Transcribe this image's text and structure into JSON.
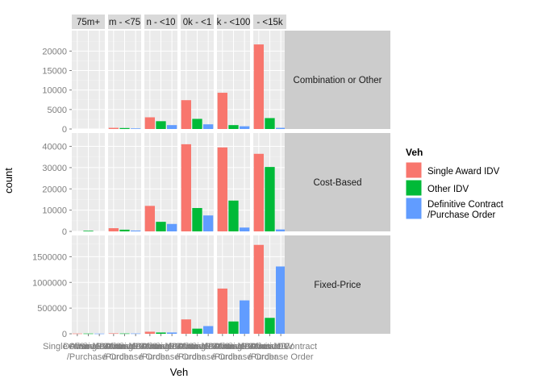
{
  "chart_data": {
    "type": "bar",
    "xlabel": "Veh",
    "ylabel": "count",
    "legend": {
      "title": "Veh",
      "placement": "right",
      "items": [
        {
          "label": "Single Award IDV",
          "color": "#F8766D"
        },
        {
          "label": "Other IDV",
          "color": "#00BA38"
        },
        {
          "label": "Definitive Contract\n/Purchase Order",
          "color": "#619CFF"
        }
      ]
    },
    "x_tick_labels": [
      "Single Award IDV",
      "Other IDV",
      "Definitive Contract\n/Purchase Order"
    ],
    "columns": [
      "75m+",
      "m - <75",
      "n - <10",
      "0k - <1",
      "k - <100",
      "- <15k"
    ],
    "rows": [
      {
        "label": "Combination or Other",
        "ylim": [
          0,
          24000
        ],
        "yticks": [
          0,
          5000,
          10000,
          15000,
          20000
        ],
        "ytick_labels": [
          "0",
          "5000",
          "10000",
          "15000",
          "20000"
        ],
        "values": [
          [
            0,
            0,
            0
          ],
          [
            300,
            250,
            150
          ],
          [
            3000,
            2000,
            1000
          ],
          [
            7400,
            2600,
            1200
          ],
          [
            9300,
            1000,
            700
          ],
          [
            21700,
            2800,
            300
          ]
        ]
      },
      {
        "label": "Cost-Based",
        "ylim": [
          0,
          44000
        ],
        "yticks": [
          0,
          10000,
          20000,
          30000,
          40000
        ],
        "ytick_labels": [
          "0",
          "10000",
          "20000",
          "30000",
          "40000"
        ],
        "values": [
          [
            0,
            300,
            0
          ],
          [
            1500,
            800,
            400
          ],
          [
            12000,
            4500,
            3500
          ],
          [
            41000,
            11000,
            7500
          ],
          [
            39500,
            14500,
            1800
          ],
          [
            36500,
            30300,
            900
          ]
        ]
      },
      {
        "label": "Fixed-Price",
        "ylim": [
          0,
          1820000
        ],
        "yticks": [
          0,
          500000,
          1000000,
          1500000
        ],
        "ytick_labels": [
          "0",
          "500000",
          "1000000",
          "1500000"
        ],
        "values": [
          [
            5000,
            5000,
            4000
          ],
          [
            8000,
            6000,
            6000
          ],
          [
            40000,
            25000,
            25000
          ],
          [
            280000,
            100000,
            150000
          ],
          [
            880000,
            240000,
            650000
          ],
          [
            1730000,
            310000,
            1310000
          ]
        ]
      }
    ],
    "grid": true
  }
}
